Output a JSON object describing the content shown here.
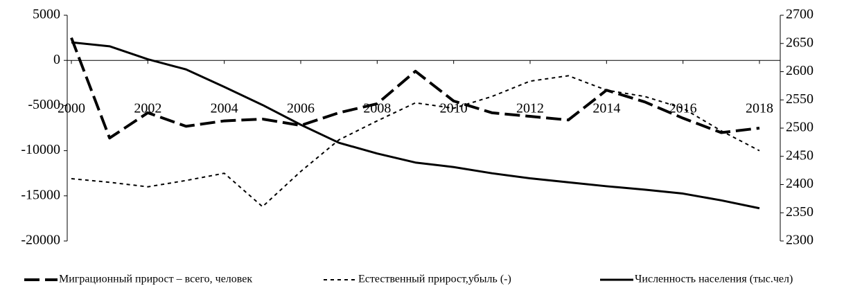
{
  "chart_data": {
    "type": "line",
    "x": [
      2000,
      2001,
      2002,
      2003,
      2004,
      2005,
      2006,
      2007,
      2008,
      2009,
      2010,
      2011,
      2012,
      2013,
      2014,
      2015,
      2016,
      2017,
      2018
    ],
    "xlim": [
      2000,
      2018
    ],
    "xticks": [
      2000,
      2002,
      2004,
      2006,
      2008,
      2010,
      2012,
      2014,
      2016,
      2018
    ],
    "ylim": [
      -20000,
      5000
    ],
    "yticks": [
      -20000,
      -15000,
      -10000,
      -5000,
      0,
      5000
    ],
    "y2lim": [
      2300,
      2700
    ],
    "y2ticks": [
      2300,
      2350,
      2400,
      2450,
      2500,
      2550,
      2600,
      2650,
      2700
    ],
    "series": [
      {
        "name": "Миграционный прирост – всего, человек",
        "color": "#000000",
        "style": "dashed",
        "values": [
          2500,
          -8600,
          -5800,
          -7300,
          -6700,
          -6500,
          -7200,
          -5800,
          -4800,
          -1200,
          -4500,
          -5800,
          -6200,
          -6600,
          -3300,
          -4600,
          -6400,
          -8000,
          -7500
        ]
      },
      {
        "name": "Естественный прирост,убыль (-)",
        "color": "#000000",
        "style": "dotted",
        "values": [
          -13100,
          -13500,
          -14000,
          -13300,
          -12500,
          -16200,
          -12300,
          -8800,
          -6700,
          -4700,
          -5300,
          -4000,
          -2300,
          -1700,
          -3300,
          -4000,
          -5300,
          -7800,
          -10000
        ]
      },
      {
        "name": "Численность населения (тыс.чел)",
        "color": "#000000",
        "style": "solid",
        "axis": "y2",
        "values": [
          2652,
          2645,
          2622,
          2604,
          2573,
          2541,
          2506,
          2474,
          2455,
          2439,
          2431,
          2420,
          2411,
          2404,
          2397,
          2391,
          2384,
          2372,
          2358
        ]
      }
    ]
  }
}
